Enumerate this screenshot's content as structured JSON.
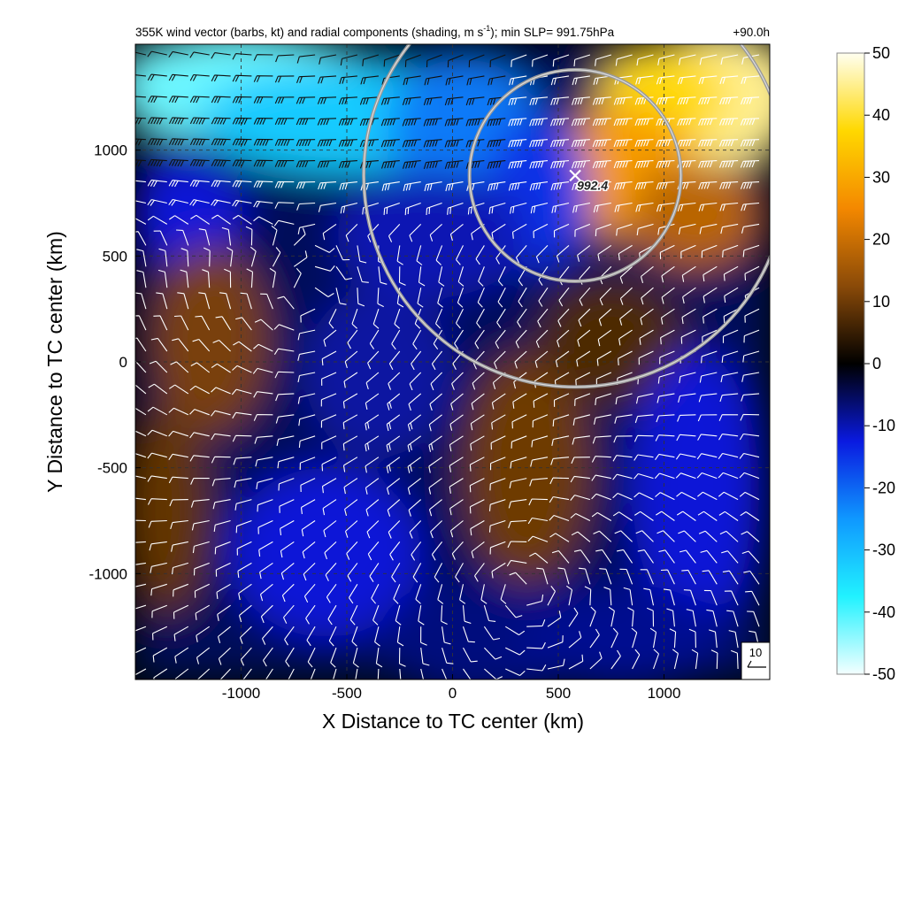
{
  "chart_data": {
    "type": "heatmap",
    "title": "355K wind vector (barbs, kt) and radial components (shading, m s",
    "title_superscript": "-1",
    "title_suffix": "); min SLP= 991.75hPa",
    "forecast_time": "+90.0h",
    "xlabel": "X Distance to TC center (km)",
    "ylabel": "Y Distance to TC center (km)",
    "xlim": [
      -1500,
      1500
    ],
    "ylim": [
      -1500,
      1500
    ],
    "x_ticks": [
      -1000,
      -500,
      0,
      500,
      1000
    ],
    "y_ticks": [
      1000,
      500,
      0,
      -500,
      -1000
    ],
    "x_tick_labels": [
      "-1000",
      "-500",
      "0",
      "500",
      "1000"
    ],
    "y_tick_labels": [
      "1000",
      "500",
      "0",
      "-500",
      "-1000"
    ],
    "grid": true,
    "grid_style": "dashed",
    "colorbar": {
      "range": [
        -50,
        50
      ],
      "ticks": [
        50,
        40,
        30,
        20,
        10,
        0,
        -10,
        -20,
        -30,
        -40,
        -50
      ],
      "tick_labels": [
        "50",
        "40",
        "30",
        "20",
        "10",
        "0",
        "-10",
        "-20",
        "-30",
        "-40",
        "-50"
      ],
      "colors": [
        "#f4ffff",
        "#21f2ff",
        "#0f98ff",
        "#0a1ae0",
        "#000000",
        "#8a4a08",
        "#f48800",
        "#ffd800",
        "#fffff0"
      ]
    },
    "min_slp_marker": {
      "x": 580,
      "y": 880,
      "label": "992.4"
    },
    "circles": [
      {
        "x": 580,
        "y": 880,
        "radius_km": 500
      },
      {
        "x": 580,
        "y": 880,
        "radius_km": 1000
      }
    ],
    "reference_barb_label": "10",
    "shading_regions": [
      {
        "value": 45,
        "x": 1250,
        "y": 1250,
        "sx": 400,
        "sy": 320
      },
      {
        "value": 38,
        "x": 1000,
        "y": 1250,
        "sx": 300,
        "sy": 250
      },
      {
        "value": 28,
        "x": 820,
        "y": 900,
        "sx": 330,
        "sy": 300
      },
      {
        "value": 18,
        "x": 1150,
        "y": 700,
        "sx": 300,
        "sy": 250
      },
      {
        "value": -42,
        "x": -1000,
        "y": 1300,
        "sx": 600,
        "sy": 260
      },
      {
        "value": -32,
        "x": -500,
        "y": 1150,
        "sx": 700,
        "sy": 250
      },
      {
        "value": -22,
        "x": 50,
        "y": 1100,
        "sx": 360,
        "sy": 330
      },
      {
        "value": -15,
        "x": 400,
        "y": 800,
        "sx": 250,
        "sy": 360
      },
      {
        "value": -12,
        "x": -1250,
        "y": 700,
        "sx": 260,
        "sy": 250
      },
      {
        "value": -10,
        "x": -100,
        "y": 600,
        "sx": 450,
        "sy": 300
      },
      {
        "value": 11,
        "x": -1150,
        "y": 100,
        "sx": 280,
        "sy": 450
      },
      {
        "value": 9,
        "x": -1350,
        "y": -700,
        "sx": 200,
        "sy": 500
      },
      {
        "value": -9,
        "x": -350,
        "y": -50,
        "sx": 350,
        "sy": 400
      },
      {
        "value": -12,
        "x": -600,
        "y": -900,
        "sx": 450,
        "sy": 400
      },
      {
        "value": -7,
        "x": 150,
        "y": -1300,
        "sx": 500,
        "sy": 300
      },
      {
        "value": 10,
        "x": 350,
        "y": -500,
        "sx": 300,
        "sy": 550
      },
      {
        "value": 7,
        "x": 750,
        "y": 100,
        "sx": 350,
        "sy": 300
      },
      {
        "value": -12,
        "x": 1150,
        "y": -600,
        "sx": 300,
        "sy": 650
      },
      {
        "value": -8,
        "x": 800,
        "y": -1300,
        "sx": 500,
        "sy": 250
      }
    ],
    "barb_flow": {
      "spacing_km": 100,
      "centers": [
        {
          "x": -600,
          "y": 200,
          "strength": 1
        },
        {
          "x": 200,
          "y": -900,
          "strength": -0.8
        }
      ],
      "jet": {
        "y": 1050,
        "speed": 55,
        "width": 300
      }
    }
  }
}
